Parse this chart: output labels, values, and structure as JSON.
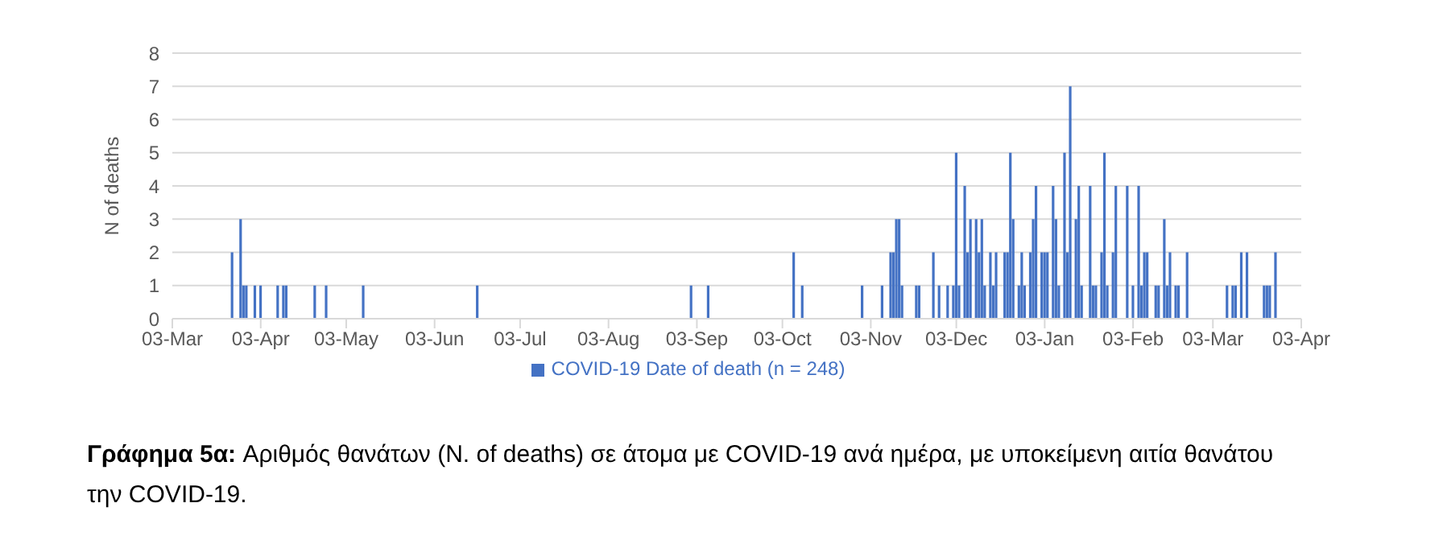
{
  "chart_data": {
    "type": "bar",
    "ylabel": "N of deaths",
    "categories": [
      "03-Mar",
      null,
      null,
      null,
      null,
      null,
      null,
      null,
      null,
      null,
      null,
      null,
      null,
      null,
      null,
      null,
      null,
      null,
      null,
      null,
      null,
      null,
      null,
      null,
      null,
      null,
      null,
      null,
      null,
      null,
      null,
      "03-Apr",
      null,
      null,
      null,
      null,
      null,
      null,
      null,
      null,
      null,
      null,
      null,
      null,
      null,
      null,
      null,
      null,
      null,
      null,
      null,
      null,
      null,
      null,
      null,
      null,
      null,
      null,
      null,
      null,
      null,
      "03-May",
      null,
      null,
      null,
      null,
      null,
      null,
      null,
      null,
      null,
      null,
      null,
      null,
      null,
      null,
      null,
      null,
      null,
      null,
      null,
      null,
      null,
      null,
      null,
      null,
      null,
      null,
      null,
      null,
      null,
      null,
      "03-Jun",
      null,
      null,
      null,
      null,
      null,
      null,
      null,
      null,
      null,
      null,
      null,
      null,
      null,
      null,
      null,
      null,
      null,
      null,
      null,
      null,
      null,
      null,
      null,
      null,
      null,
      null,
      null,
      null,
      null,
      "03-Jul",
      null,
      null,
      null,
      null,
      null,
      null,
      null,
      null,
      null,
      null,
      null,
      null,
      null,
      null,
      null,
      null,
      null,
      null,
      null,
      null,
      null,
      null,
      null,
      null,
      null,
      null,
      null,
      null,
      null,
      null,
      "03-Aug",
      null,
      null,
      null,
      null,
      null,
      null,
      null,
      null,
      null,
      null,
      null,
      null,
      null,
      null,
      null,
      null,
      null,
      null,
      null,
      null,
      null,
      null,
      null,
      null,
      null,
      null,
      null,
      null,
      null,
      null,
      "03-Sep",
      null,
      null,
      null,
      null,
      null,
      null,
      null,
      null,
      null,
      null,
      null,
      null,
      null,
      null,
      null,
      null,
      null,
      null,
      null,
      null,
      null,
      null,
      null,
      null,
      null,
      null,
      null,
      null,
      null,
      "03-Oct",
      null,
      null,
      null,
      null,
      null,
      null,
      null,
      null,
      null,
      null,
      null,
      null,
      null,
      null,
      null,
      null,
      null,
      null,
      null,
      null,
      null,
      null,
      null,
      null,
      null,
      null,
      null,
      null,
      null,
      null,
      "03-Nov",
      null,
      null,
      null,
      null,
      null,
      null,
      null,
      null,
      null,
      null,
      null,
      null,
      null,
      null,
      null,
      null,
      null,
      null,
      null,
      null,
      null,
      null,
      null,
      null,
      null,
      null,
      null,
      null,
      null,
      "03-Dec",
      null,
      null,
      null,
      null,
      null,
      null,
      null,
      null,
      null,
      null,
      null,
      null,
      null,
      null,
      null,
      null,
      null,
      null,
      null,
      null,
      null,
      null,
      null,
      null,
      null,
      null,
      null,
      null,
      null,
      null,
      "03-Jan",
      null,
      null,
      null,
      null,
      null,
      null,
      null,
      null,
      null,
      null,
      null,
      null,
      null,
      null,
      null,
      null,
      null,
      null,
      null,
      null,
      null,
      null,
      null,
      null,
      null,
      null,
      null,
      null,
      null,
      null,
      "03-Feb",
      null,
      null,
      null,
      null,
      null,
      null,
      null,
      null,
      null,
      null,
      null,
      null,
      null,
      null,
      null,
      null,
      null,
      null,
      null,
      null,
      null,
      null,
      null,
      null,
      null,
      null,
      null,
      "03-Mar",
      null,
      null,
      null,
      null,
      null,
      null,
      null,
      null,
      null,
      null,
      null,
      null,
      null,
      null,
      null,
      null,
      null,
      null,
      null,
      null,
      null,
      null,
      null,
      null,
      null,
      null,
      null,
      null,
      null,
      null,
      "03-Apr"
    ],
    "series": [
      {
        "name": "COVID-19 Date of death (n = 248)",
        "color": "#4472c4",
        "values": [
          null,
          null,
          null,
          null,
          null,
          null,
          null,
          null,
          null,
          null,
          null,
          null,
          null,
          null,
          null,
          null,
          null,
          null,
          null,
          null,
          null,
          2,
          null,
          null,
          3,
          1,
          1,
          null,
          null,
          1,
          null,
          1,
          null,
          null,
          null,
          null,
          null,
          1,
          null,
          1,
          1,
          null,
          null,
          null,
          null,
          null,
          null,
          null,
          null,
          null,
          1,
          null,
          null,
          null,
          1,
          null,
          null,
          null,
          null,
          null,
          null,
          null,
          null,
          null,
          null,
          null,
          null,
          1,
          null,
          null,
          null,
          null,
          null,
          null,
          null,
          null,
          null,
          null,
          null,
          null,
          null,
          null,
          null,
          null,
          null,
          null,
          null,
          null,
          null,
          null,
          null,
          null,
          null,
          null,
          null,
          null,
          null,
          null,
          null,
          null,
          null,
          null,
          null,
          null,
          null,
          null,
          null,
          1,
          null,
          null,
          null,
          null,
          null,
          null,
          null,
          null,
          null,
          null,
          null,
          null,
          null,
          null,
          null,
          null,
          null,
          null,
          null,
          null,
          null,
          null,
          null,
          null,
          null,
          null,
          null,
          null,
          null,
          null,
          null,
          null,
          null,
          null,
          null,
          null,
          null,
          null,
          null,
          null,
          null,
          null,
          null,
          null,
          null,
          null,
          null,
          null,
          null,
          null,
          null,
          null,
          null,
          null,
          null,
          null,
          null,
          null,
          null,
          null,
          null,
          null,
          null,
          null,
          null,
          null,
          null,
          null,
          null,
          null,
          null,
          null,
          null,
          null,
          1,
          null,
          null,
          null,
          null,
          null,
          1,
          null,
          null,
          null,
          null,
          null,
          null,
          null,
          null,
          null,
          null,
          null,
          null,
          null,
          null,
          null,
          null,
          null,
          null,
          null,
          null,
          null,
          null,
          null,
          null,
          null,
          null,
          null,
          null,
          null,
          2,
          null,
          null,
          1,
          null,
          null,
          null,
          null,
          null,
          null,
          null,
          null,
          null,
          null,
          null,
          null,
          null,
          null,
          null,
          null,
          null,
          null,
          null,
          null,
          1,
          null,
          null,
          null,
          null,
          null,
          null,
          1,
          null,
          null,
          2,
          2,
          3,
          3,
          1,
          null,
          null,
          null,
          null,
          1,
          1,
          null,
          null,
          null,
          null,
          2,
          null,
          1,
          null,
          null,
          1,
          null,
          1,
          5,
          1,
          null,
          4,
          2,
          3,
          null,
          3,
          2,
          3,
          1,
          null,
          2,
          1,
          2,
          null,
          null,
          2,
          2,
          5,
          3,
          null,
          1,
          2,
          1,
          null,
          2,
          3,
          4,
          null,
          2,
          2,
          2,
          null,
          4,
          3,
          1,
          null,
          5,
          2,
          7,
          null,
          3,
          4,
          1,
          null,
          null,
          4,
          1,
          1,
          null,
          2,
          5,
          1,
          null,
          2,
          4,
          null,
          null,
          null,
          4,
          null,
          1,
          null,
          4,
          1,
          2,
          2,
          null,
          null,
          1,
          1,
          null,
          3,
          1,
          2,
          null,
          1,
          1,
          null,
          null,
          2,
          null,
          null,
          null,
          null,
          null,
          null,
          null,
          null,
          null,
          null,
          null,
          null,
          null,
          1,
          null,
          1,
          1,
          null,
          2,
          null,
          2,
          null,
          null,
          null,
          null,
          null,
          1,
          1,
          1,
          null,
          2,
          null,
          null,
          null,
          null,
          null,
          null,
          null,
          null,
          null
        ]
      }
    ],
    "ylim": [
      0,
      8
    ],
    "yticks": [
      0,
      1,
      2,
      3,
      4,
      5,
      6,
      7,
      8
    ],
    "grid": "y",
    "legend": "bottom",
    "annotations": [
      "Γράφημα 5α:",
      "Αριθμός θανάτων (N. of deaths) σε άτομα με COVID-19 ανά ημέρα, με υποκείμενη αιτία θανάτου την COVID-19."
    ]
  }
}
